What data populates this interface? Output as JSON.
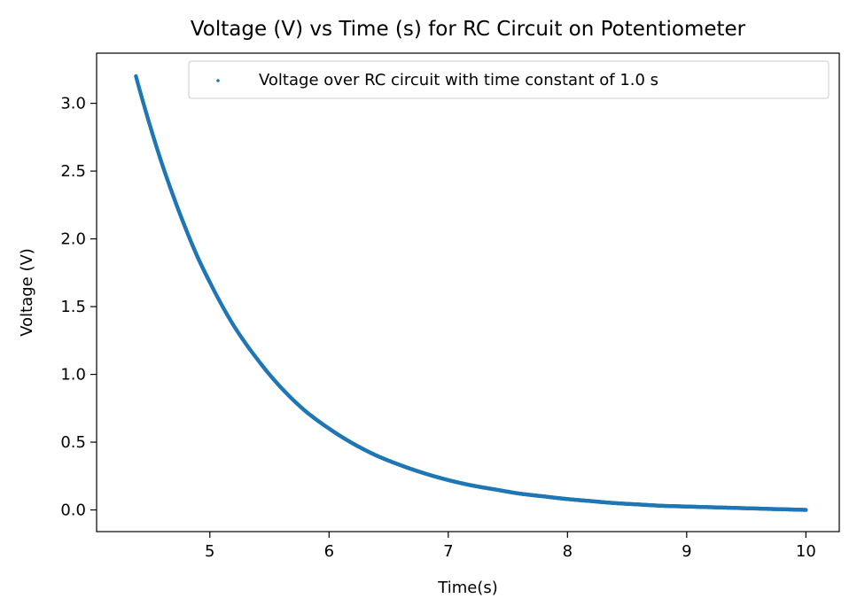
{
  "chart_data": {
    "type": "scatter",
    "title": "Voltage (V) vs Time (s) for RC Circuit on Potentiometer",
    "xlabel": "Time(s)",
    "ylabel": "Voltage (V)",
    "xlim": [
      4.05,
      10.28
    ],
    "ylim": [
      -0.16,
      3.37
    ],
    "xticks": [
      5,
      6,
      7,
      8,
      9,
      10
    ],
    "xtick_labels": [
      "5",
      "6",
      "7",
      "8",
      "9",
      "10"
    ],
    "yticks": [
      0.0,
      0.5,
      1.0,
      1.5,
      2.0,
      2.5,
      3.0
    ],
    "ytick_labels": [
      "0.0",
      "0.5",
      "1.0",
      "1.5",
      "2.0",
      "2.5",
      "3.0"
    ],
    "grid": false,
    "legend_position": "upper-right",
    "series": [
      {
        "name": "Voltage over RC circuit with time constant of 1.0 s",
        "color": "#1f77b4",
        "x": [
          4.38,
          4.5,
          4.6,
          4.7,
          4.8,
          4.9,
          5.0,
          5.2,
          5.4,
          5.6,
          5.8,
          6.0,
          6.2,
          6.4,
          6.6,
          6.8,
          7.0,
          7.2,
          7.4,
          7.6,
          7.8,
          8.0,
          8.2,
          8.4,
          8.6,
          8.8,
          9.0,
          9.2,
          9.4,
          9.6,
          9.8,
          10.0
        ],
        "y": [
          3.2,
          2.83,
          2.55,
          2.3,
          2.07,
          1.86,
          1.68,
          1.36,
          1.11,
          0.9,
          0.73,
          0.6,
          0.49,
          0.4,
          0.33,
          0.27,
          0.22,
          0.18,
          0.15,
          0.12,
          0.1,
          0.08,
          0.065,
          0.05,
          0.04,
          0.03,
          0.025,
          0.02,
          0.015,
          0.01,
          0.005,
          0.0
        ]
      }
    ]
  }
}
